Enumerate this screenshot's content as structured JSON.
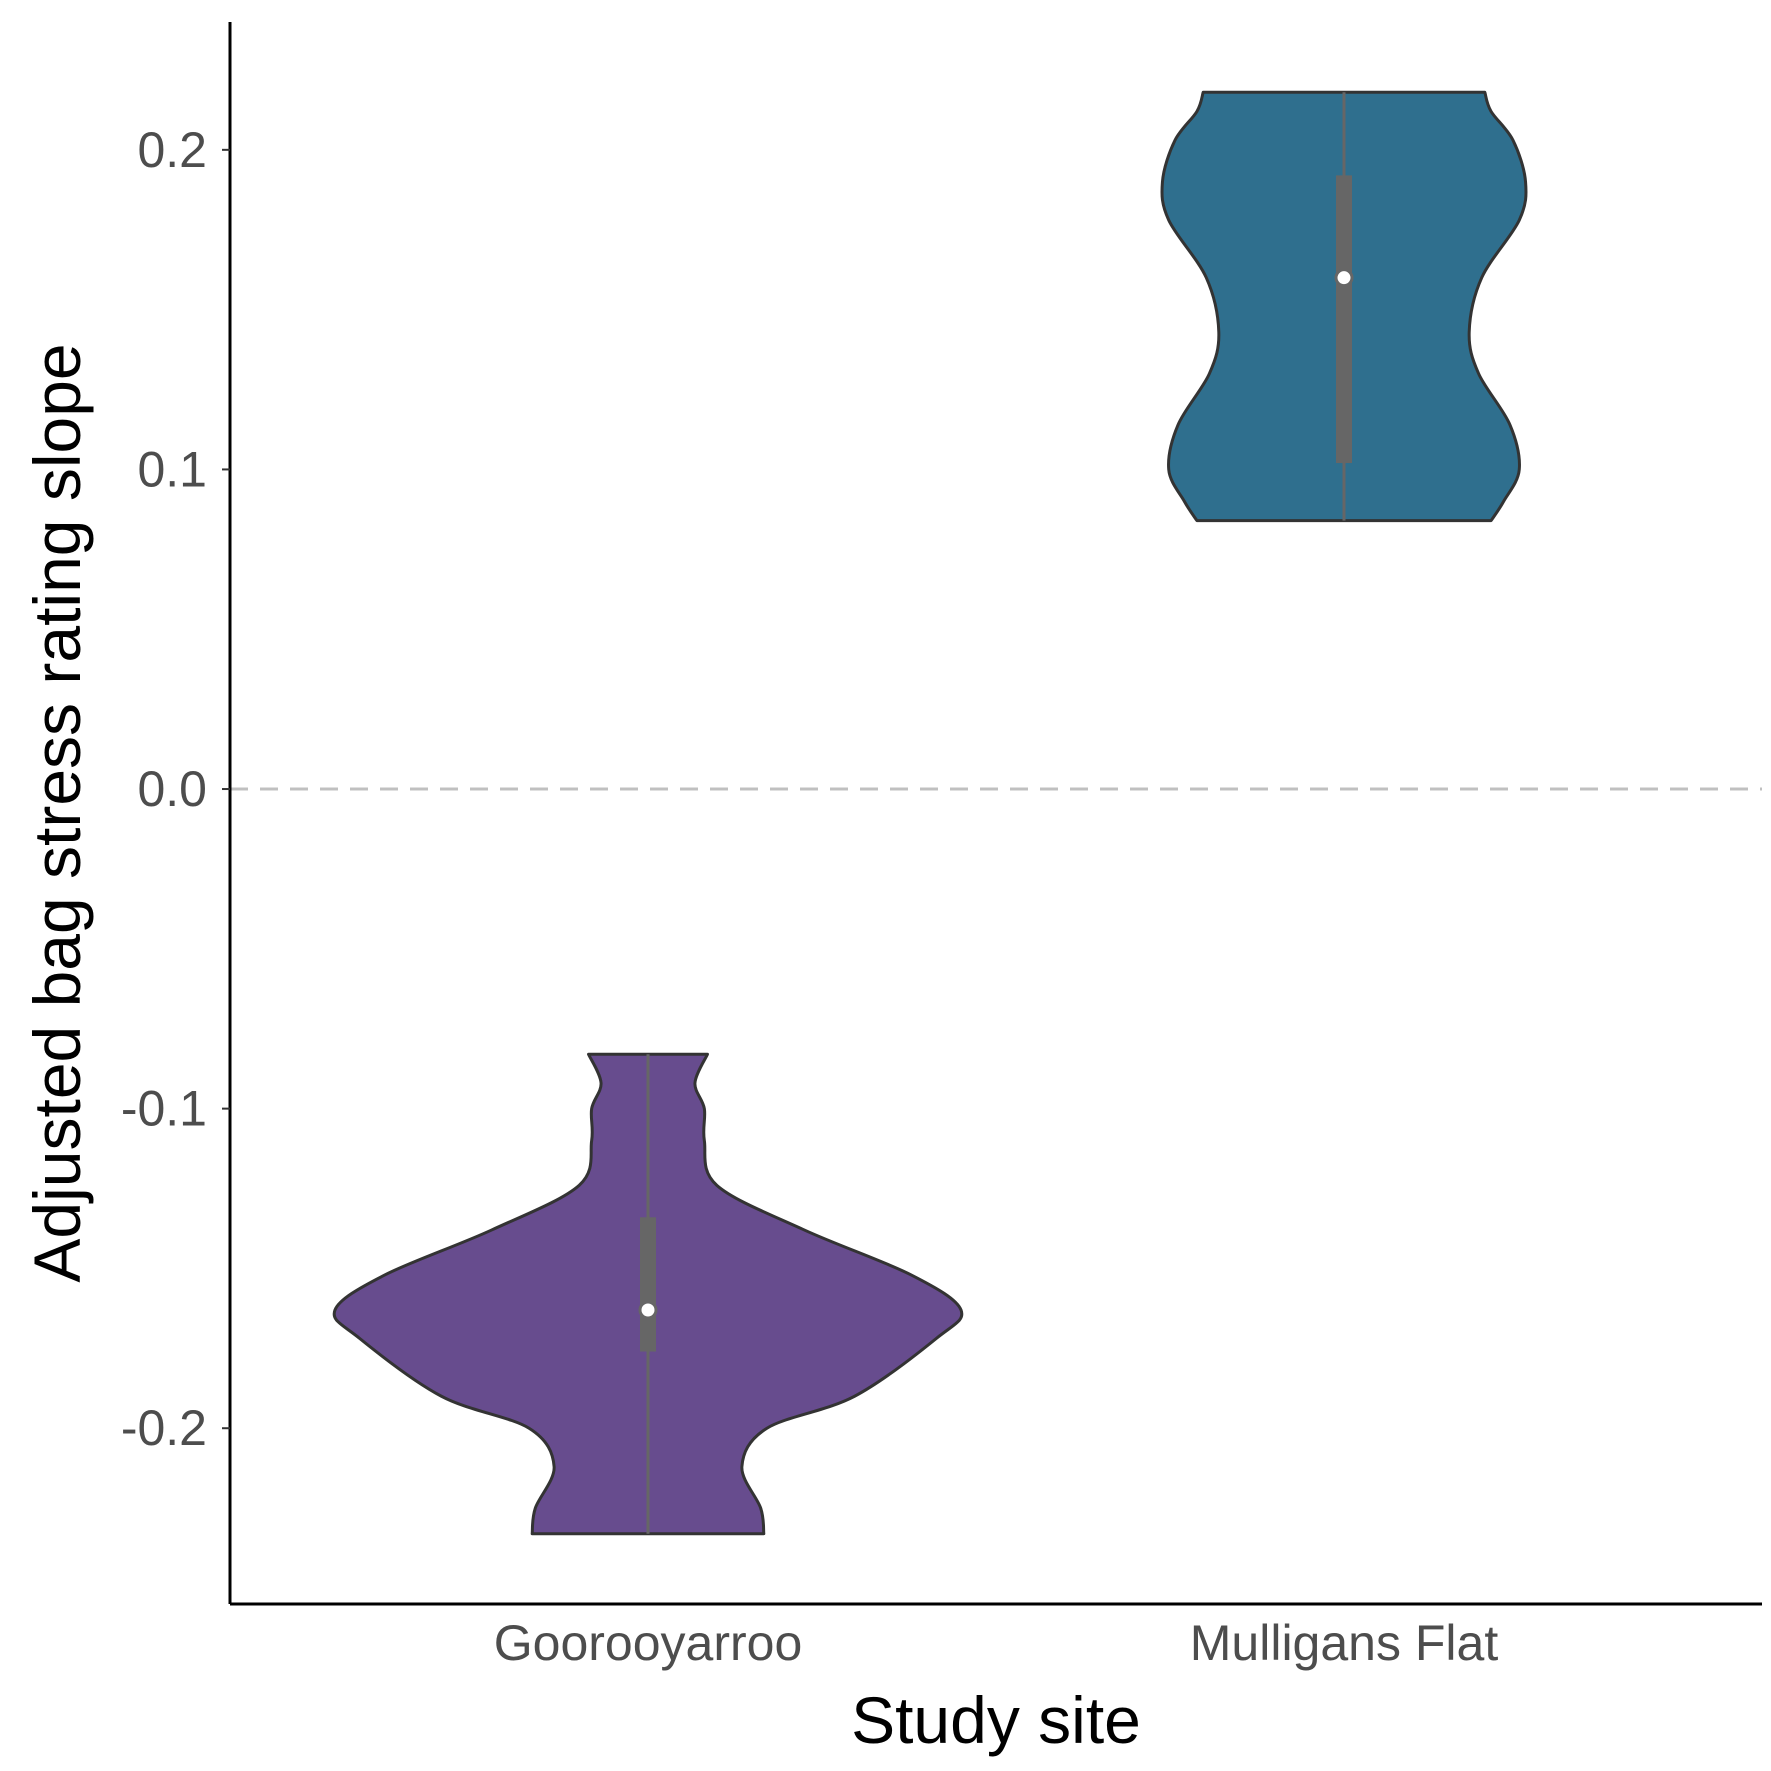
{
  "chart_data": {
    "type": "violin",
    "title": "",
    "xlabel": "Study site",
    "ylabel": "Adjusted bag stress rating slope",
    "ylim": [
      -0.255,
      0.24
    ],
    "yticks": [
      0.2,
      0.1,
      0.0,
      -0.1,
      -0.2
    ],
    "ytick_labels": [
      "0.2",
      "0.1",
      "0.0",
      "-0.1",
      "-0.2"
    ],
    "reference_line": {
      "y": 0.0,
      "style": "dashed",
      "color": "#c0c0c0"
    },
    "grid": false,
    "categories": [
      "Gooroo­yarroo",
      "Mulligans Flat"
    ],
    "series": [
      {
        "name": "Goorooyarroo",
        "color": "#674c8e",
        "min": -0.233,
        "max": -0.083,
        "q1": -0.176,
        "median": -0.163,
        "q3": -0.134,
        "density": [
          {
            "y": -0.233,
            "w": 0.37
          },
          {
            "y": -0.225,
            "w": 0.36
          },
          {
            "y": -0.212,
            "w": 0.3
          },
          {
            "y": -0.2,
            "w": 0.38
          },
          {
            "y": -0.19,
            "w": 0.66
          },
          {
            "y": -0.172,
            "w": 0.92
          },
          {
            "y": -0.163,
            "w": 1.0
          },
          {
            "y": -0.152,
            "w": 0.84
          },
          {
            "y": -0.138,
            "w": 0.5
          },
          {
            "y": -0.124,
            "w": 0.22
          },
          {
            "y": -0.11,
            "w": 0.18
          },
          {
            "y": -0.1,
            "w": 0.18
          },
          {
            "y": -0.092,
            "w": 0.15
          },
          {
            "y": -0.083,
            "w": 0.19
          }
        ]
      },
      {
        "name": "Mulligans Flat",
        "color": "#2f6f8e",
        "min": 0.084,
        "max": 0.218,
        "q1": 0.102,
        "median": 0.16,
        "q3": 0.192,
        "density": [
          {
            "y": 0.084,
            "w": 0.47
          },
          {
            "y": 0.09,
            "w": 0.51
          },
          {
            "y": 0.1,
            "w": 0.56
          },
          {
            "y": 0.114,
            "w": 0.53
          },
          {
            "y": 0.13,
            "w": 0.43
          },
          {
            "y": 0.143,
            "w": 0.4
          },
          {
            "y": 0.16,
            "w": 0.44
          },
          {
            "y": 0.178,
            "w": 0.56
          },
          {
            "y": 0.19,
            "w": 0.58
          },
          {
            "y": 0.203,
            "w": 0.54
          },
          {
            "y": 0.212,
            "w": 0.47
          },
          {
            "y": 0.218,
            "w": 0.45
          }
        ]
      }
    ]
  }
}
